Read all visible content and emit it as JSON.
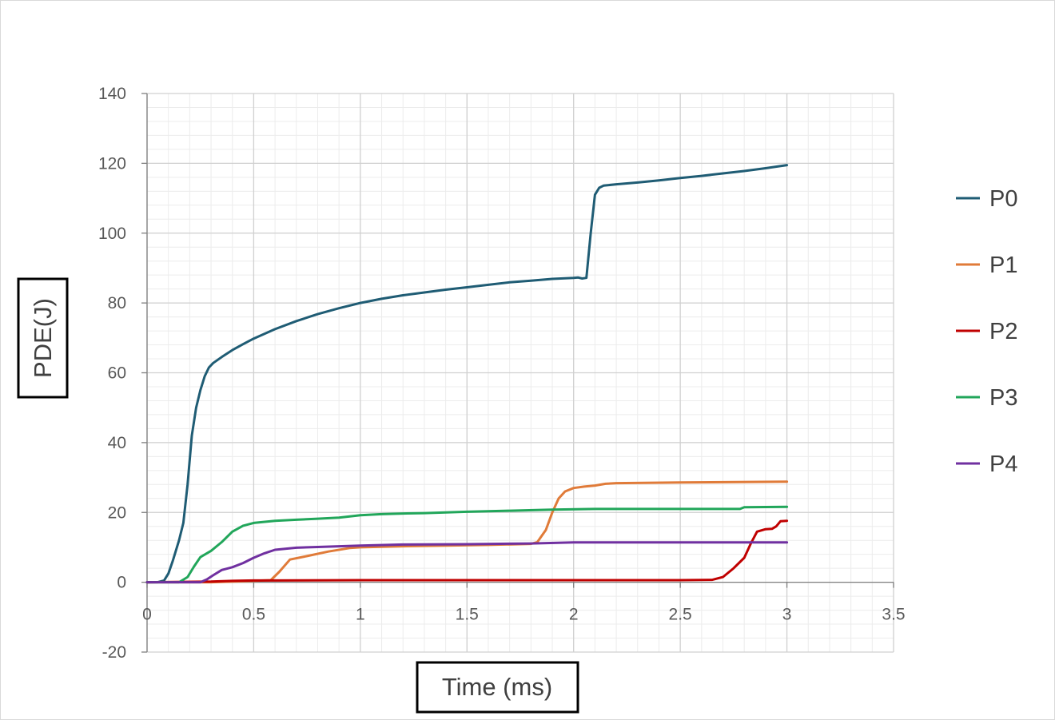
{
  "chart_data": {
    "type": "line",
    "title": "",
    "xlabel": "Time (ms)",
    "ylabel": "PDE(J)",
    "xlim": [
      0,
      3.5
    ],
    "ylim": [
      -20,
      140
    ],
    "x_ticks": [
      0,
      0.5,
      1,
      1.5,
      2,
      2.5,
      3,
      3.5
    ],
    "x_tick_labels": [
      "0",
      "0.5",
      "1",
      "1.5",
      "2",
      "2.5",
      "3",
      "3.5"
    ],
    "y_ticks": [
      -20,
      0,
      20,
      40,
      60,
      80,
      100,
      120,
      140
    ],
    "y_tick_labels": [
      "-20",
      "0",
      "20",
      "40",
      "60",
      "80",
      "100",
      "120",
      "140"
    ],
    "grid": true,
    "legend_position": "right",
    "series": [
      {
        "name": "P0",
        "color": "#1f5c74",
        "points": [
          [
            0,
            0
          ],
          [
            0.05,
            0
          ],
          [
            0.08,
            0.5
          ],
          [
            0.1,
            2.5
          ],
          [
            0.12,
            6
          ],
          [
            0.15,
            12
          ],
          [
            0.17,
            17
          ],
          [
            0.19,
            28
          ],
          [
            0.21,
            42
          ],
          [
            0.23,
            50
          ],
          [
            0.25,
            55
          ],
          [
            0.27,
            59
          ],
          [
            0.29,
            61.5
          ],
          [
            0.31,
            62.8
          ],
          [
            0.35,
            64.5
          ],
          [
            0.4,
            66.5
          ],
          [
            0.45,
            68.2
          ],
          [
            0.5,
            69.8
          ],
          [
            0.6,
            72.5
          ],
          [
            0.7,
            74.8
          ],
          [
            0.8,
            76.8
          ],
          [
            0.9,
            78.5
          ],
          [
            1.0,
            80.0
          ],
          [
            1.1,
            81.2
          ],
          [
            1.2,
            82.2
          ],
          [
            1.3,
            83.0
          ],
          [
            1.4,
            83.8
          ],
          [
            1.5,
            84.5
          ],
          [
            1.6,
            85.2
          ],
          [
            1.7,
            85.9
          ],
          [
            1.8,
            86.4
          ],
          [
            1.9,
            86.9
          ],
          [
            2.0,
            87.2
          ],
          [
            2.02,
            87.3
          ],
          [
            2.04,
            87.0
          ],
          [
            2.06,
            87.2
          ],
          [
            2.08,
            100
          ],
          [
            2.1,
            111
          ],
          [
            2.12,
            113
          ],
          [
            2.14,
            113.6
          ],
          [
            2.2,
            114
          ],
          [
            2.3,
            114.5
          ],
          [
            2.4,
            115.1
          ],
          [
            2.5,
            115.8
          ],
          [
            2.6,
            116.4
          ],
          [
            2.7,
            117.1
          ],
          [
            2.8,
            117.8
          ],
          [
            2.9,
            118.6
          ],
          [
            3.0,
            119.5
          ]
        ]
      },
      {
        "name": "P1",
        "color": "#e07b39",
        "points": [
          [
            0,
            0
          ],
          [
            0.1,
            0
          ],
          [
            0.2,
            0
          ],
          [
            0.3,
            0
          ],
          [
            0.4,
            0.2
          ],
          [
            0.5,
            0.4
          ],
          [
            0.58,
            0.6
          ],
          [
            0.62,
            3
          ],
          [
            0.67,
            6.5
          ],
          [
            0.75,
            7.5
          ],
          [
            0.85,
            8.8
          ],
          [
            0.95,
            9.8
          ],
          [
            1.0,
            10.0
          ],
          [
            1.2,
            10.3
          ],
          [
            1.4,
            10.5
          ],
          [
            1.6,
            10.7
          ],
          [
            1.8,
            11.0
          ],
          [
            1.83,
            11.5
          ],
          [
            1.87,
            15
          ],
          [
            1.9,
            20
          ],
          [
            1.93,
            24
          ],
          [
            1.96,
            26
          ],
          [
            2.0,
            27
          ],
          [
            2.05,
            27.4
          ],
          [
            2.1,
            27.7
          ],
          [
            2.15,
            28.2
          ],
          [
            2.2,
            28.4
          ],
          [
            2.5,
            28.6
          ],
          [
            3.0,
            28.8
          ]
        ]
      },
      {
        "name": "P2",
        "color": "#c00000",
        "points": [
          [
            0,
            0
          ],
          [
            0.3,
            0.2
          ],
          [
            0.4,
            0.4
          ],
          [
            0.5,
            0.5
          ],
          [
            0.6,
            0.5
          ],
          [
            1.0,
            0.6
          ],
          [
            1.5,
            0.6
          ],
          [
            2.0,
            0.6
          ],
          [
            2.5,
            0.6
          ],
          [
            2.65,
            0.7
          ],
          [
            2.7,
            1.5
          ],
          [
            2.75,
            4
          ],
          [
            2.8,
            7
          ],
          [
            2.83,
            11
          ],
          [
            2.86,
            14.5
          ],
          [
            2.9,
            15.2
          ],
          [
            2.93,
            15.3
          ],
          [
            2.95,
            16
          ],
          [
            2.97,
            17.5
          ],
          [
            3.0,
            17.6
          ]
        ]
      },
      {
        "name": "P3",
        "color": "#21a65a",
        "points": [
          [
            0,
            0
          ],
          [
            0.15,
            0
          ],
          [
            0.19,
            1.5
          ],
          [
            0.22,
            4.5
          ],
          [
            0.25,
            7.2
          ],
          [
            0.3,
            9
          ],
          [
            0.35,
            11.5
          ],
          [
            0.4,
            14.5
          ],
          [
            0.45,
            16.2
          ],
          [
            0.5,
            17.0
          ],
          [
            0.6,
            17.6
          ],
          [
            0.7,
            17.9
          ],
          [
            0.8,
            18.2
          ],
          [
            0.9,
            18.5
          ],
          [
            1.0,
            19.2
          ],
          [
            1.1,
            19.5
          ],
          [
            1.2,
            19.7
          ],
          [
            1.3,
            19.8
          ],
          [
            1.4,
            20.0
          ],
          [
            1.5,
            20.2
          ],
          [
            1.7,
            20.5
          ],
          [
            1.9,
            20.8
          ],
          [
            2.1,
            21.0
          ],
          [
            2.5,
            21.0
          ],
          [
            2.78,
            21.0
          ],
          [
            2.8,
            21.5
          ],
          [
            3.0,
            21.6
          ]
        ]
      },
      {
        "name": "P4",
        "color": "#7030a0",
        "points": [
          [
            0,
            0
          ],
          [
            0.25,
            0
          ],
          [
            0.28,
            0.8
          ],
          [
            0.31,
            2
          ],
          [
            0.35,
            3.5
          ],
          [
            0.4,
            4.3
          ],
          [
            0.45,
            5.5
          ],
          [
            0.5,
            7
          ],
          [
            0.55,
            8.3
          ],
          [
            0.6,
            9.3
          ],
          [
            0.7,
            9.9
          ],
          [
            0.8,
            10.1
          ],
          [
            1.0,
            10.5
          ],
          [
            1.2,
            10.8
          ],
          [
            1.5,
            10.9
          ],
          [
            1.8,
            11.1
          ],
          [
            2.0,
            11.4
          ],
          [
            2.5,
            11.4
          ],
          [
            3.0,
            11.4
          ]
        ]
      }
    ]
  }
}
